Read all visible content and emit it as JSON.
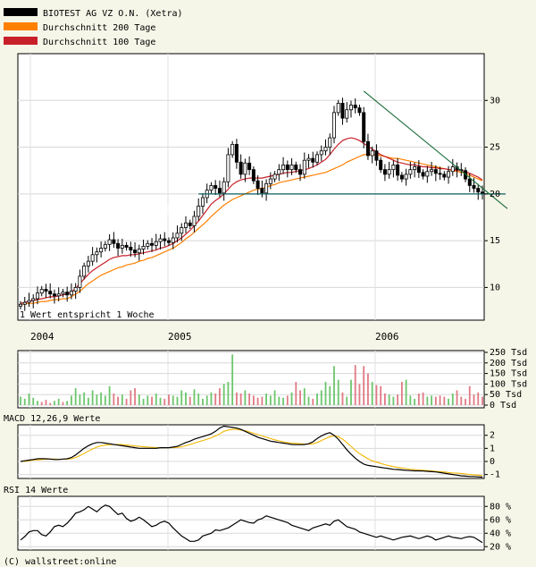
{
  "legend": [
    {
      "label": "BIOTEST AG VZ O.N. (Xetra)",
      "color": "#000000"
    },
    {
      "label": "Durchschnitt 200 Tage",
      "color": "#ff7f00"
    },
    {
      "label": "Durchschnitt 100 Tage",
      "color": "#c8202a"
    }
  ],
  "watermark": "wallstreet:online",
  "footer": "(C) wallstreet:online",
  "price_note": "1 Wert entspricht 1 Woche",
  "years": [
    "2004",
    "2005",
    "2006"
  ],
  "panels": {
    "macd_title": "MACD 12,26,9 Werte",
    "rsi_title": "RSI 14 Werte"
  },
  "chart_data": [
    {
      "type": "candlestick",
      "name": "price",
      "ylim": [
        6.5,
        35
      ],
      "yticks": [
        10,
        15,
        20,
        25,
        30
      ],
      "support_level": 20,
      "trendline": {
        "from": {
          "week": 81,
          "value": 31
        },
        "to": {
          "week": 111,
          "value": 19
        }
      },
      "weeks": 110,
      "close": [
        8.2,
        8.4,
        8.6,
        8.8,
        9.4,
        9.8,
        9.6,
        9.3,
        9.1,
        9.3,
        9.5,
        9.2,
        9.6,
        10.0,
        11.2,
        12.3,
        12.8,
        13.5,
        13.8,
        14.2,
        14.6,
        15.1,
        14.7,
        14.2,
        14.5,
        14.3,
        14.0,
        13.7,
        14.1,
        14.4,
        14.7,
        14.5,
        14.9,
        15.2,
        15.0,
        14.8,
        15.3,
        15.8,
        16.4,
        16.9,
        16.6,
        17.6,
        18.7,
        19.6,
        20.4,
        20.9,
        20.6,
        20.1,
        21.3,
        24.2,
        25.3,
        23.4,
        22.1,
        23.3,
        22.6,
        21.4,
        20.6,
        20.1,
        21.1,
        21.6,
        22.1,
        22.6,
        23.1,
        22.6,
        23.1,
        22.6,
        22.1,
        23.6,
        23.8,
        23.4,
        24.2,
        24.6,
        25.0,
        26.0,
        28.7,
        29.7,
        28.1,
        29.0,
        29.5,
        29.2,
        28.7,
        25.6,
        24.1,
        24.6,
        23.6,
        22.6,
        22.1,
        22.6,
        23.1,
        22.0,
        21.6,
        22.1,
        22.6,
        22.9,
        22.3,
        21.9,
        22.4,
        22.6,
        22.2,
        22.1,
        21.8,
        22.4,
        22.9,
        22.6,
        22.5,
        21.6,
        20.9,
        20.6,
        20.2,
        20.0
      ],
      "ma200": [
        8.2,
        8.2,
        8.3,
        8.3,
        8.4,
        8.5,
        8.5,
        8.6,
        8.7,
        8.7,
        8.8,
        8.8,
        9.0,
        9.3,
        9.6,
        10.0,
        10.4,
        10.7,
        11.0,
        11.3,
        11.5,
        11.7,
        11.9,
        12.1,
        12.2,
        12.4,
        12.5,
        12.6,
        12.8,
        12.9,
        13.1,
        13.2,
        13.4,
        13.6,
        13.8,
        14.0,
        14.2,
        14.5,
        14.8,
        15.2,
        15.5,
        15.9,
        16.3,
        16.7,
        17.1,
        17.6,
        18.0,
        18.4,
        18.8,
        19.1,
        19.4,
        19.6,
        19.8,
        20.0,
        20.2,
        20.4,
        20.5,
        20.6,
        20.7,
        20.9,
        21.0,
        21.2,
        21.3,
        21.4,
        21.5,
        21.6,
        21.7,
        21.8,
        21.9,
        22.0,
        22.1,
        22.2,
        22.3,
        22.5,
        22.7,
        22.9,
        23.1,
        23.4,
        23.6,
        23.8,
        24.0,
        24.2,
        24.2,
        24.2,
        24.2,
        24.1,
        24.0,
        23.9,
        23.8,
        23.8,
        23.7,
        23.6,
        23.5,
        23.4,
        23.3,
        23.2,
        23.1,
        23.0,
        22.9,
        22.8,
        22.7,
        22.6,
        22.5,
        22.4,
        22.3,
        22.2,
        22.0,
        21.8,
        21.6,
        21.4
      ],
      "ma100": [
        8.3,
        8.4,
        8.5,
        8.6,
        8.7,
        8.8,
        8.9,
        9.0,
        9.0,
        9.1,
        9.2,
        9.3,
        9.5,
        9.9,
        10.4,
        10.9,
        11.4,
        11.8,
        12.1,
        12.4,
        12.7,
        13.0,
        13.2,
        13.3,
        13.4,
        13.4,
        13.5,
        13.5,
        13.6,
        13.7,
        13.8,
        13.9,
        14.0,
        14.2,
        14.3,
        14.5,
        14.7,
        15.0,
        15.3,
        15.7,
        16.1,
        16.6,
        17.1,
        17.7,
        18.3,
        18.9,
        19.3,
        19.6,
        20.0,
        20.5,
        21.0,
        21.3,
        21.5,
        21.6,
        21.7,
        21.7,
        21.7,
        21.7,
        21.8,
        21.9,
        22.0,
        22.1,
        22.2,
        22.3,
        22.3,
        22.4,
        22.5,
        22.6,
        22.7,
        22.9,
        23.1,
        23.4,
        23.7,
        24.2,
        24.8,
        25.3,
        25.7,
        25.9,
        26.0,
        25.9,
        25.7,
        25.4,
        25.1,
        24.8,
        24.5,
        24.2,
        24.0,
        23.8,
        23.6,
        23.4,
        23.3,
        23.2,
        23.1,
        23.1,
        23.0,
        22.9,
        22.9,
        22.8,
        22.8,
        22.7,
        22.7,
        22.6,
        22.6,
        22.5,
        22.5,
        22.4,
        22.2,
        22.0,
        21.8,
        21.5
      ]
    },
    {
      "type": "bar",
      "name": "volume",
      "unit": "Tsd",
      "ylim": [
        0,
        250
      ],
      "yticks": [
        0,
        50,
        100,
        150,
        200,
        250
      ],
      "ytick_labels": [
        "0 Tsd",
        "50 Tsd",
        "100 Tsd",
        "150 Tsd",
        "200 Tsd",
        "250 Tsd"
      ],
      "colors": {
        "up": "#6cc66c",
        "down": "#e07a85"
      },
      "values": [
        40,
        30,
        55,
        35,
        20,
        15,
        25,
        10,
        20,
        30,
        15,
        20,
        45,
        80,
        50,
        60,
        35,
        70,
        50,
        60,
        45,
        90,
        55,
        40,
        50,
        30,
        70,
        80,
        50,
        30,
        45,
        40,
        55,
        35,
        30,
        50,
        45,
        40,
        70,
        60,
        40,
        75,
        55,
        30,
        45,
        60,
        55,
        80,
        100,
        110,
        240,
        60,
        55,
        70,
        55,
        45,
        35,
        40,
        55,
        45,
        70,
        40,
        35,
        45,
        60,
        110,
        70,
        80,
        40,
        30,
        55,
        70,
        110,
        90,
        185,
        120,
        60,
        40,
        120,
        190,
        100,
        185,
        150,
        110,
        95,
        90,
        55,
        50,
        40,
        50,
        110,
        120,
        45,
        30,
        55,
        60,
        40,
        45,
        40,
        45,
        40,
        30,
        55,
        70,
        40,
        30,
        90,
        50,
        60,
        40
      ],
      "up": [
        1,
        1,
        1,
        1,
        1,
        0,
        0,
        0,
        1,
        1,
        0,
        1,
        1,
        1,
        1,
        1,
        1,
        1,
        1,
        1,
        1,
        1,
        0,
        0,
        1,
        0,
        0,
        0,
        1,
        1,
        1,
        0,
        1,
        1,
        0,
        0,
        1,
        1,
        1,
        1,
        0,
        1,
        1,
        1,
        1,
        1,
        0,
        0,
        1,
        1,
        1,
        0,
        0,
        1,
        0,
        0,
        0,
        0,
        1,
        1,
        1,
        1,
        1,
        0,
        1,
        0,
        0,
        1,
        1,
        0,
        1,
        1,
        1,
        1,
        1,
        1,
        0,
        1,
        1,
        0,
        0,
        0,
        0,
        1,
        0,
        0,
        0,
        1,
        1,
        0,
        0,
        1,
        1,
        1,
        0,
        0,
        1,
        1,
        0,
        0,
        0,
        1,
        1,
        0,
        0,
        0,
        0,
        0,
        0,
        0
      ]
    },
    {
      "type": "line",
      "name": "macd",
      "ylim": [
        -1.3,
        2.8
      ],
      "yticks": [
        -1,
        0,
        1,
        2
      ],
      "series": [
        {
          "color": "#000000",
          "values": [
            0.0,
            0.05,
            0.1,
            0.15,
            0.2,
            0.22,
            0.2,
            0.18,
            0.15,
            0.15,
            0.18,
            0.2,
            0.3,
            0.5,
            0.75,
            1.0,
            1.2,
            1.35,
            1.45,
            1.45,
            1.4,
            1.35,
            1.3,
            1.25,
            1.2,
            1.15,
            1.1,
            1.05,
            1.0,
            1.0,
            1.0,
            1.0,
            1.0,
            1.05,
            1.05,
            1.05,
            1.1,
            1.15,
            1.3,
            1.45,
            1.55,
            1.7,
            1.8,
            1.9,
            2.0,
            2.1,
            2.3,
            2.55,
            2.7,
            2.65,
            2.6,
            2.55,
            2.45,
            2.3,
            2.15,
            2.0,
            1.85,
            1.75,
            1.65,
            1.55,
            1.5,
            1.45,
            1.4,
            1.35,
            1.3,
            1.28,
            1.28,
            1.3,
            1.35,
            1.5,
            1.75,
            1.95,
            2.1,
            2.2,
            2.0,
            1.7,
            1.3,
            0.9,
            0.55,
            0.25,
            0.0,
            -0.2,
            -0.3,
            -0.35,
            -0.4,
            -0.45,
            -0.5,
            -0.55,
            -0.6,
            -0.62,
            -0.65,
            -0.68,
            -0.7,
            -0.72,
            -0.72,
            -0.73,
            -0.75,
            -0.78,
            -0.8,
            -0.85,
            -0.9,
            -0.95,
            -1.0,
            -1.05,
            -1.1,
            -1.12,
            -1.15,
            -1.15,
            -1.18,
            -1.2
          ]
        },
        {
          "color": "#f2b600",
          "values": [
            0.0,
            0.0,
            0.05,
            0.1,
            0.12,
            0.15,
            0.17,
            0.18,
            0.18,
            0.17,
            0.17,
            0.18,
            0.2,
            0.3,
            0.45,
            0.6,
            0.8,
            0.95,
            1.1,
            1.2,
            1.25,
            1.28,
            1.3,
            1.3,
            1.28,
            1.25,
            1.22,
            1.18,
            1.15,
            1.12,
            1.1,
            1.08,
            1.06,
            1.05,
            1.05,
            1.05,
            1.06,
            1.08,
            1.12,
            1.2,
            1.3,
            1.4,
            1.5,
            1.6,
            1.7,
            1.8,
            1.95,
            2.1,
            2.3,
            2.4,
            2.45,
            2.45,
            2.4,
            2.35,
            2.25,
            2.15,
            2.05,
            1.95,
            1.85,
            1.75,
            1.65,
            1.58,
            1.5,
            1.45,
            1.4,
            1.38,
            1.35,
            1.33,
            1.32,
            1.35,
            1.45,
            1.6,
            1.75,
            1.9,
            1.95,
            1.9,
            1.7,
            1.45,
            1.15,
            0.85,
            0.6,
            0.4,
            0.2,
            0.05,
            -0.05,
            -0.15,
            -0.25,
            -0.32,
            -0.4,
            -0.45,
            -0.5,
            -0.55,
            -0.6,
            -0.62,
            -0.65,
            -0.67,
            -0.7,
            -0.72,
            -0.75,
            -0.78,
            -0.8,
            -0.85,
            -0.88,
            -0.9,
            -0.92,
            -0.95,
            -1.0,
            -1.02,
            -1.05,
            -1.08
          ]
        }
      ]
    },
    {
      "type": "line",
      "name": "rsi",
      "ylim": [
        15,
        95
      ],
      "yticks": [
        20,
        40,
        60,
        80
      ],
      "ytick_labels": [
        "20 %",
        "40 %",
        "60 %",
        "80 %"
      ],
      "series": [
        {
          "color": "#000000",
          "values": [
            30,
            35,
            42,
            44,
            44,
            38,
            36,
            42,
            50,
            52,
            50,
            55,
            62,
            70,
            72,
            75,
            80,
            76,
            72,
            78,
            82,
            80,
            74,
            68,
            70,
            62,
            58,
            60,
            64,
            60,
            55,
            50,
            52,
            56,
            58,
            55,
            48,
            42,
            36,
            32,
            28,
            28,
            30,
            36,
            38,
            40,
            45,
            44,
            46,
            48,
            52,
            56,
            60,
            58,
            56,
            55,
            60,
            62,
            66,
            64,
            62,
            60,
            58,
            56,
            52,
            50,
            48,
            46,
            44,
            48,
            50,
            52,
            54,
            52,
            58,
            60,
            55,
            50,
            48,
            46,
            42,
            40,
            38,
            36,
            34,
            36,
            34,
            32,
            30,
            32,
            34,
            35,
            36,
            34,
            32,
            34,
            36,
            34,
            30,
            32,
            34,
            36,
            34,
            33,
            32,
            34,
            35,
            34,
            30,
            26
          ]
        }
      ]
    }
  ]
}
